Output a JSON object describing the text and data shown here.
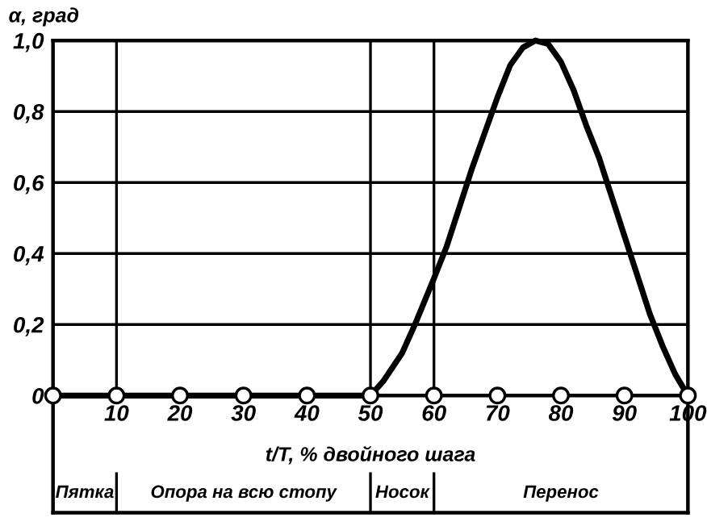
{
  "chart_data": {
    "type": "line",
    "ylabel": "α, град",
    "xlabel": "t/T, % двойного шага",
    "xlim": [
      0,
      100
    ],
    "ylim": [
      0,
      1.0
    ],
    "xticks": [
      10,
      20,
      30,
      40,
      50,
      60,
      70,
      80,
      90,
      100
    ],
    "yticks": [
      0,
      {
        "value": 0.2,
        "label": "0,2"
      },
      {
        "value": 0.4,
        "label": "0,4"
      },
      {
        "value": 0.6,
        "label": "0,6"
      },
      {
        "value": 0.8,
        "label": "0,8"
      },
      {
        "value": 1.0,
        "label": "1,0"
      }
    ],
    "grid": "y",
    "legend": false,
    "series": [
      {
        "color": "#000000",
        "marker": "none",
        "x": [
          0,
          50,
          52,
          55,
          57,
          60,
          62,
          64,
          66,
          68,
          70,
          72,
          74,
          76,
          78,
          80,
          82,
          84,
          86,
          88,
          90,
          92,
          94,
          96,
          98,
          100
        ],
        "values": [
          0,
          0,
          0.04,
          0.12,
          0.2,
          0.33,
          0.42,
          0.53,
          0.64,
          0.74,
          0.84,
          0.93,
          0.98,
          1.0,
          0.99,
          0.94,
          0.86,
          0.76,
          0.67,
          0.56,
          0.45,
          0.34,
          0.23,
          0.14,
          0.06,
          0
        ]
      },
      {
        "type": "scatter",
        "color": "#ffffff",
        "marker": "circle",
        "x": [
          0,
          10,
          20,
          30,
          40,
          50,
          60,
          70,
          80,
          90,
          100
        ],
        "values": [
          0,
          0,
          0,
          0,
          0,
          0,
          0,
          0,
          0,
          0,
          0
        ]
      }
    ],
    "ref_lines": [
      {
        "axis": "x",
        "value": 10,
        "label": null
      },
      {
        "axis": "x",
        "value": 50,
        "label": null
      },
      {
        "axis": "x",
        "value": 60,
        "label": null
      }
    ],
    "annotations": [
      "Пятка",
      "Опора на всю стопу",
      "Носок",
      "Перенос"
    ]
  }
}
